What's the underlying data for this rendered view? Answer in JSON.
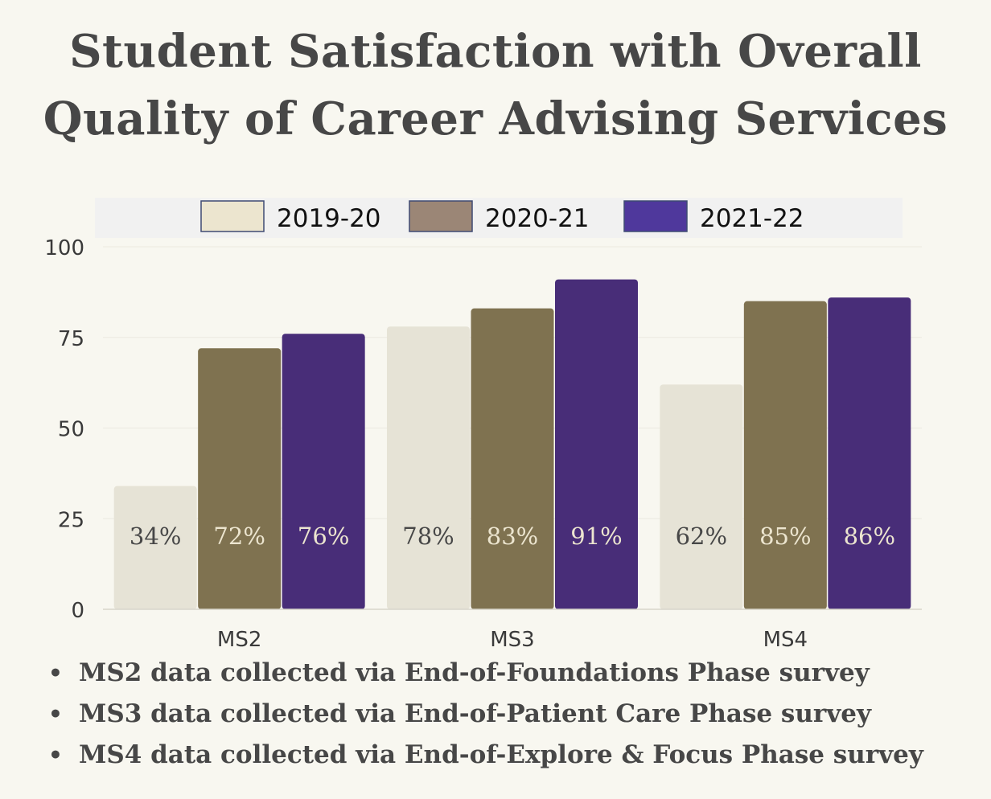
{
  "title_lines": [
    "Student Satisfaction with Overall",
    "Quality of Career Advising Services"
  ],
  "chart_data": {
    "type": "bar",
    "title": "Student Satisfaction with Overall Quality of Career Advising Services",
    "categories": [
      "MS2",
      "MS3",
      "MS4"
    ],
    "series": [
      {
        "name": "2019-20",
        "values": [
          34,
          78,
          62
        ],
        "labels": [
          "34%",
          "78%",
          "62%"
        ],
        "color": "#e6e3d6",
        "label_color": "#474747",
        "legend_fill": "#ece5cf"
      },
      {
        "name": "2020-21",
        "values": [
          72,
          83,
          85
        ],
        "labels": [
          "72%",
          "83%",
          "85%"
        ],
        "color": "#7f7250",
        "label_color": "#ece5cf",
        "legend_fill": "#9b8676"
      },
      {
        "name": "2021-22",
        "values": [
          76,
          91,
          86
        ],
        "labels": [
          "76%",
          "91%",
          "86%"
        ],
        "color": "#482d78",
        "label_color": "#ece5cf",
        "legend_fill": "#4f389c"
      }
    ],
    "yticks": [
      0,
      25,
      50,
      75,
      100
    ],
    "ylim": [
      0,
      100
    ],
    "grid": true,
    "legend_position": "top"
  },
  "notes": [
    "MS2 data collected via End-of-Foundations Phase survey",
    "MS3 data collected via End-of-Patient Care Phase survey",
    "MS4 data collected via End-of-Explore & Focus Phase survey"
  ]
}
